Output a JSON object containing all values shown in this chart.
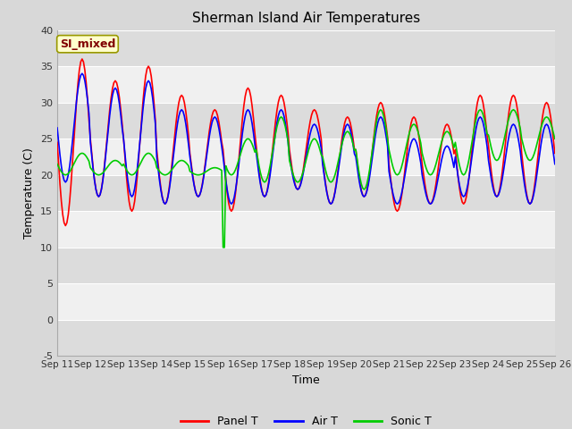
{
  "title": "Sherman Island Air Temperatures",
  "xlabel": "Time",
  "ylabel": "Temperature (C)",
  "ylim": [
    -5,
    40
  ],
  "xlim": [
    0,
    360
  ],
  "x_tick_labels": [
    "Sep 11",
    "Sep 12",
    "Sep 13",
    "Sep 14",
    "Sep 15",
    "Sep 16",
    "Sep 17",
    "Sep 18",
    "Sep 19",
    "Sep 20",
    "Sep 21",
    "Sep 22",
    "Sep 23",
    "Sep 24",
    "Sep 25",
    "Sep 26"
  ],
  "x_tick_positions": [
    0,
    24,
    48,
    72,
    96,
    120,
    144,
    168,
    192,
    216,
    240,
    264,
    288,
    312,
    336,
    360
  ],
  "y_ticks": [
    -5,
    0,
    5,
    10,
    15,
    20,
    25,
    30,
    35,
    40
  ],
  "label_box_text": "SI_mixed",
  "label_box_color": "#ffffcc",
  "label_box_text_color": "#800000",
  "panel_T_color": "#ff0000",
  "air_T_color": "#0000ff",
  "sonic_T_color": "#00cc00",
  "legend_labels": [
    "Panel T",
    "Air T",
    "Sonic T"
  ],
  "line_width": 1.2,
  "band_colors": [
    "#dcdcdc",
    "#f0f0f0"
  ],
  "fig_bg": "#d8d8d8",
  "plot_bg": "#e8e8e8"
}
